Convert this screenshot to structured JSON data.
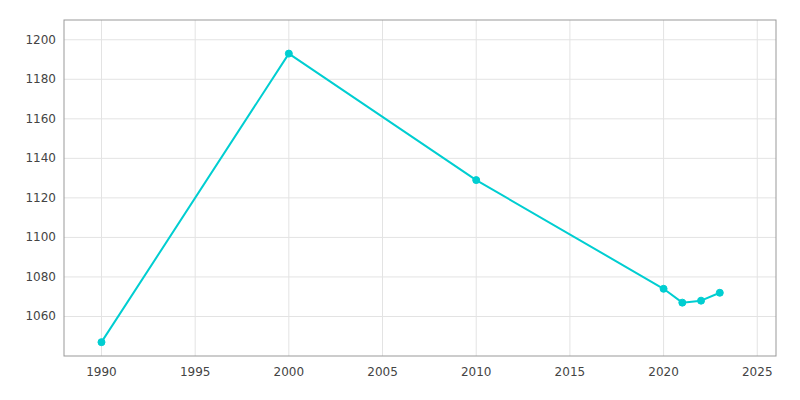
{
  "chart_data": {
    "type": "line",
    "x": [
      1990,
      2000,
      2010,
      2020,
      2021,
      2022,
      2023
    ],
    "values": [
      1047,
      1193,
      1129,
      1074,
      1067,
      1068,
      1072
    ],
    "color": "#00CED1",
    "marker": "circle",
    "xlim": [
      1988,
      2026
    ],
    "ylim": [
      1040,
      1210
    ],
    "xticks": [
      1990,
      1995,
      2000,
      2005,
      2010,
      2015,
      2020,
      2025
    ],
    "yticks": [
      1060,
      1080,
      1100,
      1120,
      1140,
      1160,
      1180,
      1200
    ],
    "grid": true
  }
}
